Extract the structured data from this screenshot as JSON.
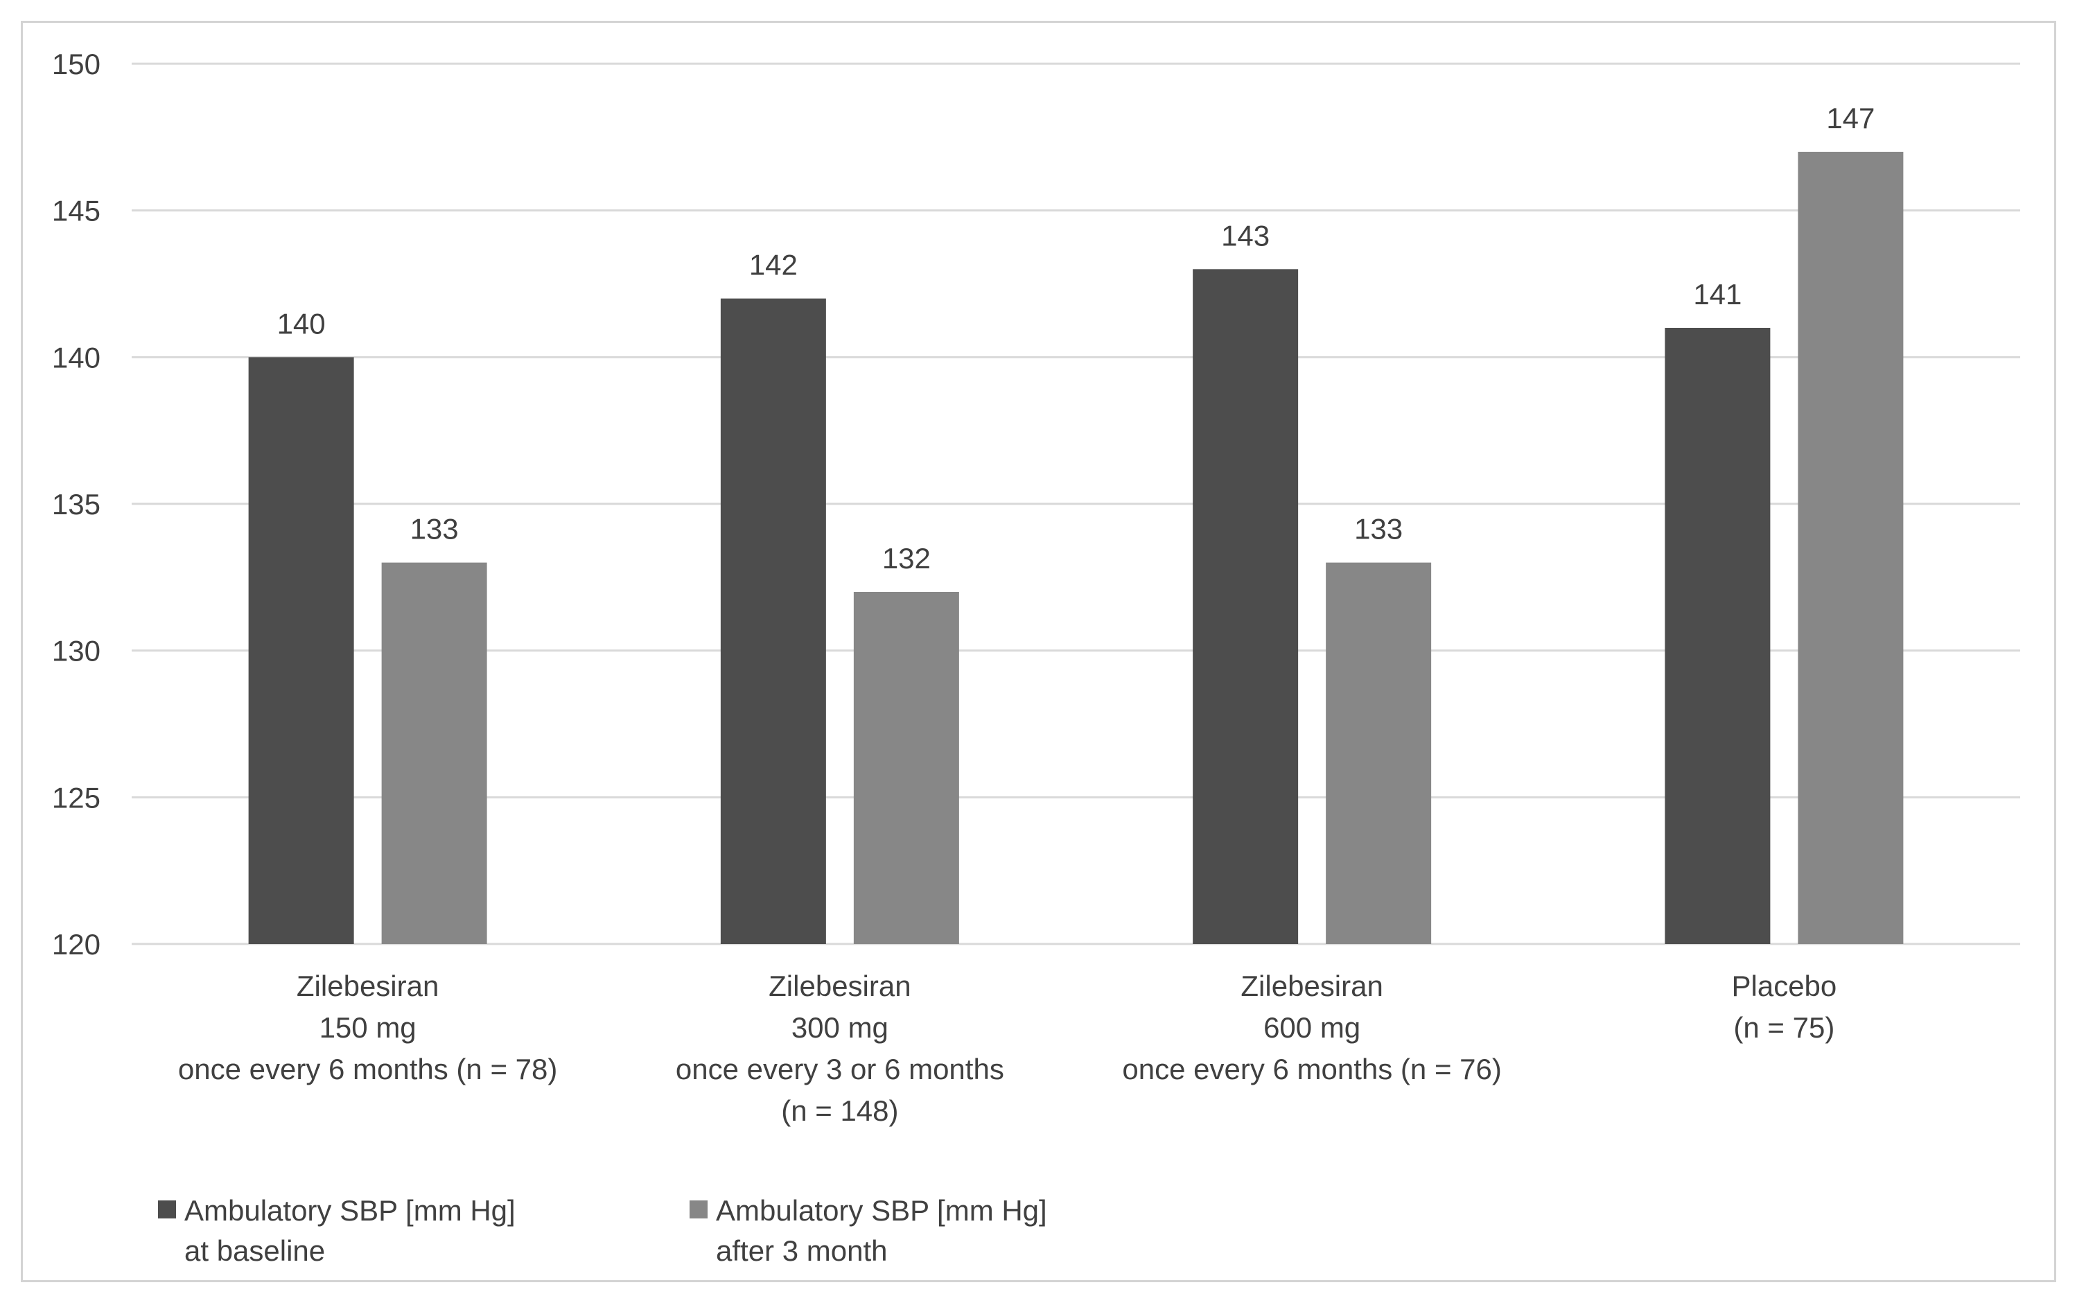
{
  "chart_data": {
    "type": "bar",
    "title": "",
    "xlabel": "",
    "ylabel": "",
    "ylim": [
      120,
      150
    ],
    "yticks": [
      120,
      125,
      130,
      135,
      140,
      145,
      150
    ],
    "grid": true,
    "legend_position": "bottom-left",
    "categories": [
      [
        "Zilebesiran",
        "150 mg",
        "once every 6 months (n = 78)"
      ],
      [
        "Zilebesiran",
        "300 mg",
        "once every 3 or 6 months",
        "(n = 148)"
      ],
      [
        "Zilebesiran",
        "600 mg",
        "once every 6 months (n = 76)"
      ],
      [
        "Placebo",
        "(n = 75)"
      ]
    ],
    "series": [
      {
        "name": "Ambulatory SBP [mm Hg] at baseline",
        "legend_lines": [
          "Ambulatory SBP [mm Hg]",
          "at baseline"
        ],
        "color": "#4d4d4d",
        "values": [
          140,
          142,
          143,
          141
        ]
      },
      {
        "name": "Ambulatory SBP [mm Hg] after 3 month",
        "legend_lines": [
          "Ambulatory SBP [mm Hg]",
          "after 3 month"
        ],
        "color": "#878787",
        "values": [
          133,
          132,
          133,
          147
        ]
      }
    ]
  },
  "colors": {
    "gridline": "#d9d9d9",
    "text": "#404040"
  }
}
